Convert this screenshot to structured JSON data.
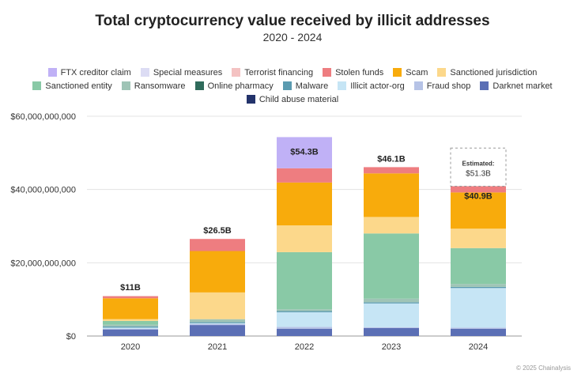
{
  "chart_data": {
    "type": "bar",
    "stacked": true,
    "title": "Total cryptocurrency value received by illicit addresses",
    "subtitle": "2020 - 2024",
    "xlabel": "",
    "ylabel": "",
    "categories": [
      "2020",
      "2021",
      "2022",
      "2023",
      "2024"
    ],
    "ylim": [
      0,
      60000000000
    ],
    "y_ticks": [
      0,
      20000000000,
      40000000000,
      60000000000
    ],
    "y_tick_labels": [
      "$0",
      "$20,000,000,000",
      "$40,000,000,000",
      "$60,000,000,000"
    ],
    "grid": true,
    "legend_position": "top",
    "totals_labels": [
      "$11B",
      "$26.5B",
      "$54.3B",
      "$46.1B",
      "$40.9B"
    ],
    "estimate": {
      "category": "2024",
      "label": "Estimated:",
      "value_label": "$51.3B",
      "value": 51300000000
    },
    "series": [
      {
        "name": "Darknet market",
        "color": "#5b6fb5",
        "values": [
          1800000000,
          3000000000,
          2000000000,
          2200000000,
          2000000000
        ]
      },
      {
        "name": "Fraud shop",
        "color": "#b6c3e6",
        "values": [
          200000000,
          300000000,
          500000000,
          200000000,
          300000000
        ]
      },
      {
        "name": "Illicit actor-org",
        "color": "#c6e5f5",
        "values": [
          300000000,
          200000000,
          4000000000,
          6500000000,
          10800000000
        ]
      },
      {
        "name": "Malware",
        "color": "#5b9bb0",
        "values": [
          300000000,
          300000000,
          300000000,
          300000000,
          300000000
        ]
      },
      {
        "name": "Online pharmacy",
        "color": "#2f6b5b",
        "values": [
          0,
          0,
          0,
          0,
          0
        ]
      },
      {
        "name": "Ransomware",
        "color": "#9fc4b6",
        "values": [
          500000000,
          800000000,
          500000000,
          1000000000,
          800000000
        ]
      },
      {
        "name": "Sanctioned entity",
        "color": "#89c9a6",
        "values": [
          1000000000,
          0,
          15600000000,
          17800000000,
          9800000000
        ]
      },
      {
        "name": "Sanctioned jurisdiction",
        "color": "#fcd88b",
        "values": [
          500000000,
          7300000000,
          7300000000,
          4500000000,
          5300000000
        ]
      },
      {
        "name": "Scam",
        "color": "#f8ab0c",
        "values": [
          5700000000,
          11300000000,
          11700000000,
          11900000000,
          9900000000
        ]
      },
      {
        "name": "Stolen funds",
        "color": "#ee7d80",
        "values": [
          500000000,
          3300000000,
          3900000000,
          1700000000,
          1700000000
        ]
      },
      {
        "name": "Terrorist financing",
        "color": "#f4c2c2",
        "values": [
          200000000,
          0,
          0,
          0,
          0
        ]
      },
      {
        "name": "Special measures",
        "color": "#dcdcf4",
        "values": [
          0,
          0,
          0,
          0,
          0
        ]
      },
      {
        "name": "FTX creditor claim",
        "color": "#c0b1f6",
        "values": [
          0,
          0,
          8500000000,
          0,
          0
        ]
      },
      {
        "name": "Child abuse material",
        "color": "#23336b",
        "values": [
          0,
          0,
          0,
          0,
          0
        ]
      }
    ]
  },
  "legend": [
    [
      {
        "label": "FTX creditor claim",
        "color": "#c0b1f6"
      },
      {
        "label": "Special measures",
        "color": "#dcdcf4"
      },
      {
        "label": "Terrorist financing",
        "color": "#f4c2c2"
      },
      {
        "label": "Stolen funds",
        "color": "#ee7d80"
      },
      {
        "label": "Scam",
        "color": "#f8ab0c"
      },
      {
        "label": "Sanctioned jurisdiction",
        "color": "#fcd88b"
      }
    ],
    [
      {
        "label": "Sanctioned entity",
        "color": "#89c9a6"
      },
      {
        "label": "Ransomware",
        "color": "#9fc4b6"
      },
      {
        "label": "Online pharmacy",
        "color": "#2f6b5b"
      },
      {
        "label": "Malware",
        "color": "#5b9bb0"
      },
      {
        "label": "Illicit actor-org",
        "color": "#c6e5f5"
      },
      {
        "label": "Fraud shop",
        "color": "#b6c3e6"
      },
      {
        "label": "Darknet market",
        "color": "#5b6fb5"
      }
    ],
    [
      {
        "label": "Child abuse material",
        "color": "#23336b"
      }
    ]
  ],
  "footer": "© 2025 Chainalysis"
}
